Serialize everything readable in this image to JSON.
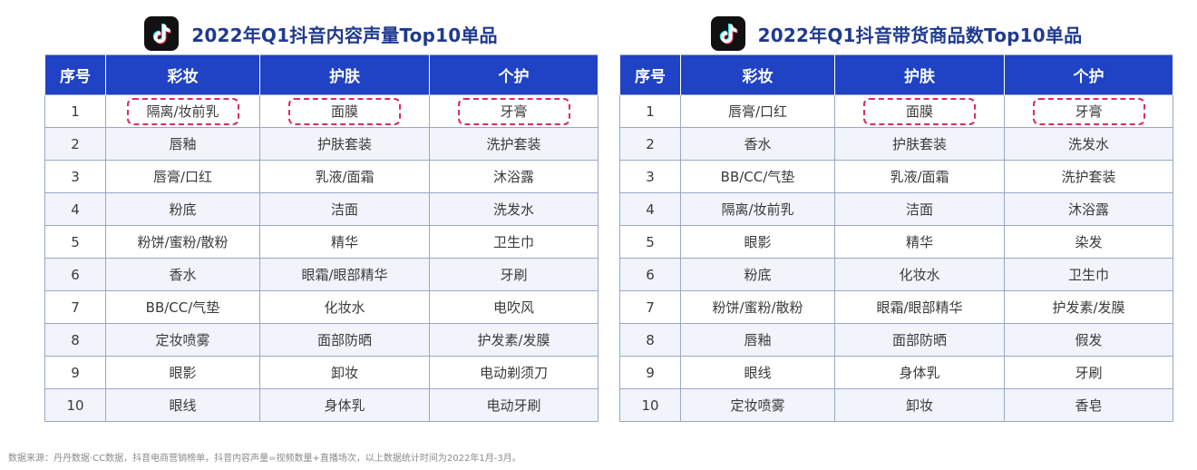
{
  "left": {
    "title": "2022年Q1抖音内容声量Top10单品",
    "headers": [
      "序号",
      "彩妆",
      "护肤",
      "个护"
    ],
    "rows": [
      [
        "1",
        "隔离/妆前乳",
        "面膜",
        "牙膏"
      ],
      [
        "2",
        "唇釉",
        "护肤套装",
        "洗护套装"
      ],
      [
        "3",
        "唇膏/口红",
        "乳液/面霜",
        "沐浴露"
      ],
      [
        "4",
        "粉底",
        "洁面",
        "洗发水"
      ],
      [
        "5",
        "粉饼/蜜粉/散粉",
        "精华",
        "卫生巾"
      ],
      [
        "6",
        "香水",
        "眼霜/眼部精华",
        "牙刷"
      ],
      [
        "7",
        "BB/CC/气垫",
        "化妆水",
        "电吹风"
      ],
      [
        "8",
        "定妆喷雾",
        "面部防晒",
        "护发素/发膜"
      ],
      [
        "9",
        "眼影",
        "卸妆",
        "电动剃须刀"
      ],
      [
        "10",
        "眼线",
        "身体乳",
        "电动牙刷"
      ]
    ],
    "highlights": [
      [
        0,
        1
      ],
      [
        0,
        2
      ],
      [
        0,
        3
      ]
    ]
  },
  "right": {
    "title": "2022年Q1抖音带货商品数Top10单品",
    "headers": [
      "序号",
      "彩妆",
      "护肤",
      "个护"
    ],
    "rows": [
      [
        "1",
        "唇膏/口红",
        "面膜",
        "牙膏"
      ],
      [
        "2",
        "香水",
        "护肤套装",
        "洗发水"
      ],
      [
        "3",
        "BB/CC/气垫",
        "乳液/面霜",
        "洗护套装"
      ],
      [
        "4",
        "隔离/妆前乳",
        "洁面",
        "沐浴露"
      ],
      [
        "5",
        "眼影",
        "精华",
        "染发"
      ],
      [
        "6",
        "粉底",
        "化妆水",
        "卫生巾"
      ],
      [
        "7",
        "粉饼/蜜粉/散粉",
        "眼霜/眼部精华",
        "护发素/发膜"
      ],
      [
        "8",
        "唇釉",
        "面部防晒",
        "假发"
      ],
      [
        "9",
        "眼线",
        "身体乳",
        "牙刷"
      ],
      [
        "10",
        "定妆喷雾",
        "卸妆",
        "香皂"
      ]
    ],
    "highlights": [
      [
        0,
        2
      ],
      [
        0,
        3
      ]
    ]
  },
  "source": "数据来源：丹丹数据·CC数据，抖音电商营销榜单，抖音内容声量=视频数量+直播场次，以上数据统计时间为2022年1月-3月。",
  "colors": {
    "header_bg": "#1f43c4",
    "title": "#1f3a8f",
    "highlight": "#d92a6e"
  },
  "icons": {
    "logo": "tiktok-logo-icon"
  }
}
